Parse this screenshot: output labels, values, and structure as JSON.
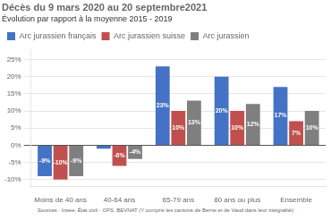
{
  "chart_data": {
    "type": "bar",
    "title": "Décès du 9 mars 2020 au 20 septembre2021",
    "subtitle": "Évolution par rapport à la moyenne 2015 - 2019",
    "source": "Sources : Insee, État civil - OFS, BEVNAT (Y compris les cantons de Berne et de Vaud dans leur intégralité)",
    "categories": [
      "Moins de 40 ans",
      "40-64 ans",
      "65-79 ans",
      "80 ans ou plus",
      "Ensemble"
    ],
    "series": [
      {
        "name": "Arc jurassien français",
        "color": "#4472C4",
        "values": [
          -9,
          -1,
          23,
          20,
          17
        ],
        "value_labels": [
          "-9%",
          null,
          "23%",
          "20%",
          "17%"
        ]
      },
      {
        "name": "Arc jurassien suisse",
        "color": "#C0504D",
        "values": [
          -10,
          -6,
          10,
          10,
          7
        ],
        "value_labels": [
          "-10%",
          "-6%",
          "10%",
          "10%",
          "7%"
        ]
      },
      {
        "name": "Arc jurassien",
        "color": "#7F7F7F",
        "values": [
          -9,
          -4,
          13,
          12,
          10
        ],
        "value_labels": [
          "-9%",
          "-4%",
          "13%",
          "12%",
          "10%"
        ]
      }
    ],
    "ylim": [
      -12,
      28
    ],
    "yticks": [
      {
        "value": -10,
        "label": "-10%"
      },
      {
        "value": -5,
        "label": "-5%"
      },
      {
        "value": 0,
        "label": "0%"
      },
      {
        "value": 5,
        "label": "5%"
      },
      {
        "value": 10,
        "label": "10%"
      },
      {
        "value": 15,
        "label": "15%"
      },
      {
        "value": 20,
        "label": "20%"
      },
      {
        "value": 25,
        "label": "25%"
      }
    ],
    "grid": true,
    "legend": "top",
    "data_labels": true
  }
}
